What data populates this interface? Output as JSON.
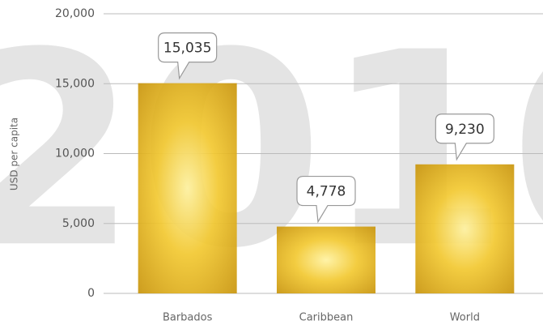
{
  "chart_data": {
    "type": "bar",
    "y_label": "USD per capita",
    "watermark": "2010",
    "categories": [
      "Barbados",
      "Caribbean",
      "World"
    ],
    "values": [
      15035,
      4778,
      9230
    ],
    "value_labels": [
      "15,035",
      "4,778",
      "9,230"
    ],
    "color": "#e2b31c",
    "ylim": [
      0,
      20000
    ],
    "yticks": [
      0,
      {
        "value": 5000,
        "label": "5,000"
      },
      {
        "value": 10000,
        "label": "10,000"
      },
      {
        "value": 15000,
        "label": "15,000"
      },
      {
        "value": 20000,
        "label": "20,000"
      }
    ],
    "grid": true
  }
}
